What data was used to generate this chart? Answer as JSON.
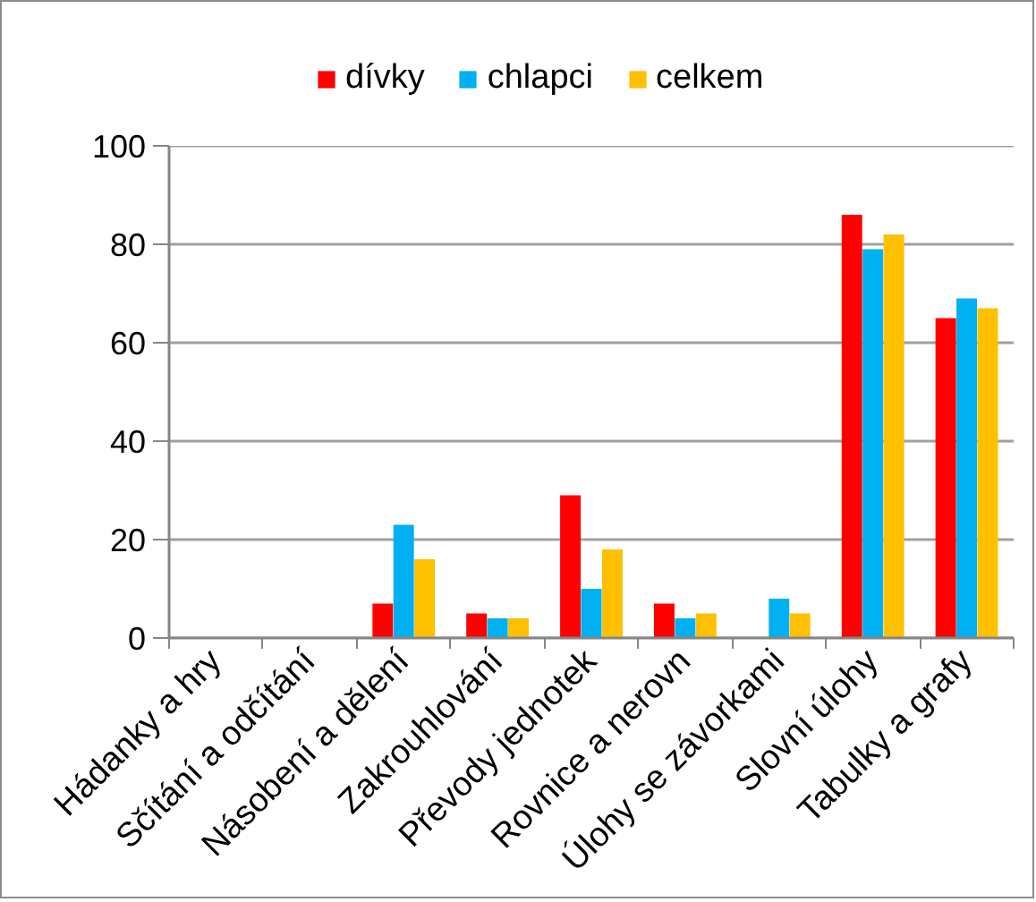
{
  "chart_data": {
    "type": "bar",
    "categories": [
      "Hádanky a hry",
      "Sčítání a odčítání",
      "Násobení a dělení",
      "Zakrouhlování",
      "Převody jednotek",
      "Rovnice a nerovn",
      "Úlohy se závorkami",
      "Slovní úlohy",
      "Tabulky a grafy"
    ],
    "series": [
      {
        "name": "dívky",
        "color": "#ff0000",
        "values": [
          0,
          0,
          7,
          5,
          29,
          7,
          0,
          86,
          65
        ]
      },
      {
        "name": "chlapci",
        "color": "#00b0f0",
        "values": [
          0,
          0,
          23,
          4,
          10,
          4,
          8,
          79,
          69
        ]
      },
      {
        "name": "celkem",
        "color": "#ffc000",
        "values": [
          0,
          0,
          16,
          4,
          18,
          5,
          5,
          82,
          67
        ]
      }
    ],
    "ylim": [
      0,
      100
    ],
    "yticks": [
      0,
      20,
      40,
      60,
      80,
      100
    ],
    "grid": "y",
    "legend": "top"
  }
}
